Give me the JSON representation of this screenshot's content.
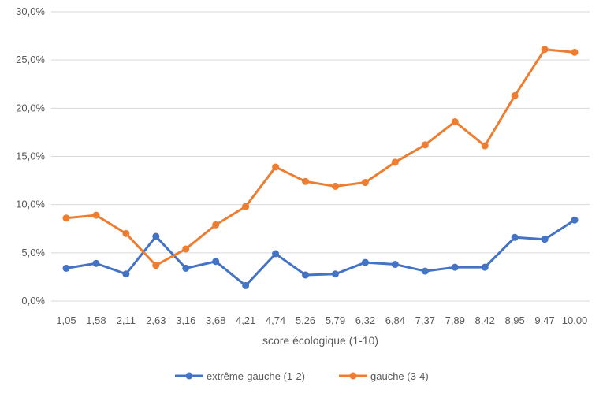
{
  "chart_data": {
    "type": "line",
    "title": "",
    "xlabel": "score écologique (1-10)",
    "ylabel": "",
    "categories": [
      "1,05",
      "1,58",
      "2,11",
      "2,63",
      "3,16",
      "3,68",
      "4,21",
      "4,74",
      "5,26",
      "5,79",
      "6,32",
      "6,84",
      "7,37",
      "7,89",
      "8,42",
      "8,95",
      "9,47",
      "10,00"
    ],
    "ylim": [
      0,
      30
    ],
    "yticks": [
      "0,0%",
      "5,0%",
      "10,0%",
      "15,0%",
      "20,0%",
      "25,0%",
      "30,0%"
    ],
    "grid": "horizontal",
    "legend_position": "bottom",
    "series": [
      {
        "name": "extrême-gauche (1-2)",
        "color": "#4472C4",
        "values": [
          3.4,
          3.9,
          2.8,
          6.7,
          3.4,
          4.1,
          1.6,
          4.9,
          2.7,
          2.8,
          4.0,
          3.8,
          3.1,
          3.5,
          3.5,
          6.6,
          6.4,
          8.4
        ]
      },
      {
        "name": "gauche (3-4)",
        "color": "#ED7D31",
        "values": [
          8.6,
          8.9,
          7.0,
          3.7,
          5.4,
          7.9,
          9.8,
          13.9,
          12.4,
          11.9,
          12.3,
          14.4,
          16.2,
          18.6,
          16.1,
          21.3,
          26.1,
          25.8
        ]
      }
    ]
  }
}
